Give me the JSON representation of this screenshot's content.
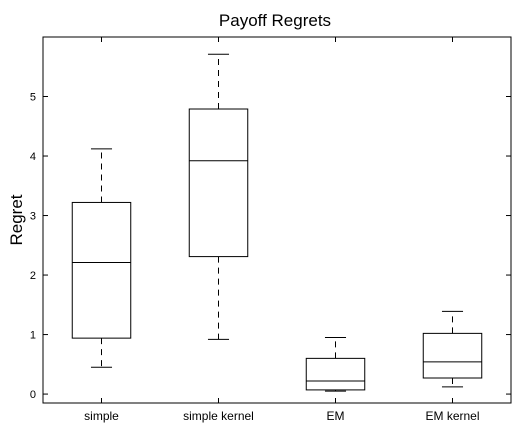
{
  "chart_data": {
    "type": "box",
    "title": "Payoff Regrets",
    "xlabel": "",
    "ylabel": "Regret",
    "categories": [
      "simple",
      "simple kernel",
      "EM",
      "EM kernel"
    ],
    "boxes": [
      {
        "whisker_low": 0.45,
        "q1": 0.94,
        "median": 2.21,
        "q3": 3.22,
        "whisker_high": 4.12
      },
      {
        "whisker_low": 0.92,
        "q1": 2.31,
        "median": 3.92,
        "q3": 4.79,
        "whisker_high": 5.71
      },
      {
        "whisker_low": 0.05,
        "q1": 0.07,
        "median": 0.22,
        "q3": 0.6,
        "whisker_high": 0.95
      },
      {
        "whisker_low": 0.12,
        "q1": 0.27,
        "median": 0.54,
        "q3": 1.02,
        "whisker_high": 1.39
      }
    ],
    "ylim": [
      -0.15,
      6.0
    ],
    "yticks": [
      "0",
      "1",
      "2",
      "3",
      "4",
      "5"
    ],
    "grid": false
  }
}
